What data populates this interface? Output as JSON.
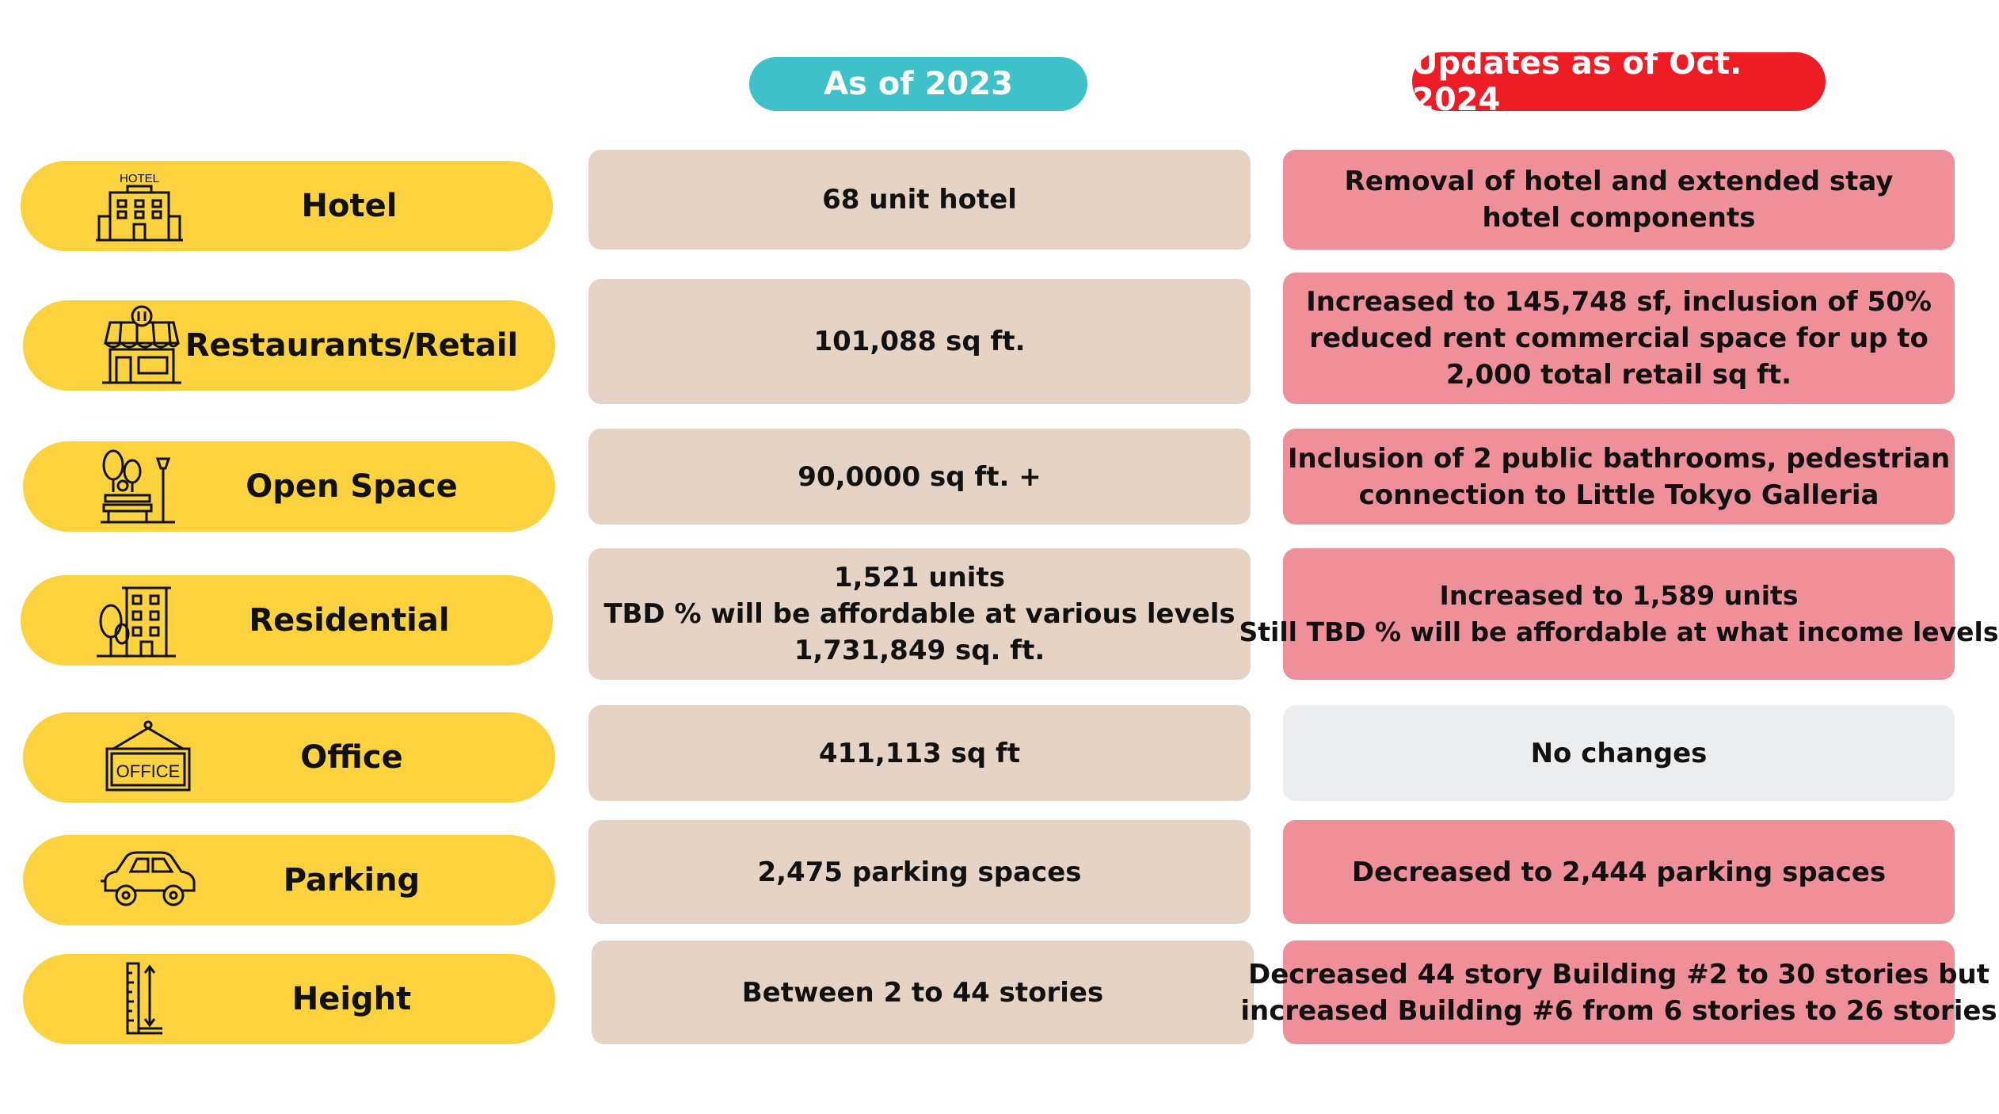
{
  "headers": {
    "as_of_2023": "As of 2023",
    "updates_2024": "Updates as of Oct. 2024"
  },
  "rows": [
    {
      "category": "Hotel",
      "icon": "hotel-icon",
      "icon_text": "HOTEL",
      "as_of_2023": [
        "68 unit hotel"
      ],
      "updates_2024": [
        "Removal of hotel and extended stay",
        "hotel components"
      ]
    },
    {
      "category": "Restaurants/Retail",
      "icon": "storefront-icon",
      "as_of_2023": [
        "101,088 sq ft."
      ],
      "updates_2024": [
        "Increased to 145,748 sf, inclusion of 50%",
        "reduced rent commercial space for up to",
        "2,000 total retail sq ft."
      ]
    },
    {
      "category": "Open Space",
      "icon": "park-icon",
      "as_of_2023": [
        "90,0000 sq ft. +"
      ],
      "updates_2024": [
        "Inclusion of 2 public bathrooms, pedestrian",
        "connection to Little Tokyo Galleria"
      ]
    },
    {
      "category": "Residential",
      "icon": "apartment-building-icon",
      "as_of_2023": [
        "1,521 units",
        "TBD % will be affordable at various levels",
        "1,731,849 sq. ft."
      ],
      "updates_2024": [
        "Increased to 1,589 units",
        "Still TBD % will be affordable at what income levels"
      ]
    },
    {
      "category": "Office",
      "icon": "office-sign-icon",
      "icon_text": "OFFICE",
      "as_of_2023": [
        "411,113 sq ft"
      ],
      "updates_2024": [
        "No changes"
      ]
    },
    {
      "category": "Parking",
      "icon": "car-icon",
      "as_of_2023": [
        "2,475 parking spaces"
      ],
      "updates_2024": [
        "Decreased to 2,444 parking spaces"
      ]
    },
    {
      "category": "Height",
      "icon": "height-ruler-icon",
      "as_of_2023": [
        "Between 2 to 44 stories"
      ],
      "updates_2024": [
        "Decreased 44 story Building #2 to 30 stories but",
        "increased Building #6 from 6 stories to 26 stories"
      ]
    }
  ],
  "colors": {
    "pill": "#fcd23f",
    "header_2023": "#3fc1c9",
    "header_2024": "#ee1c25",
    "cell_2023": "#e5d4c5",
    "cell_2024": "#ee8f9a",
    "cell_no_change": "#ecedef"
  }
}
